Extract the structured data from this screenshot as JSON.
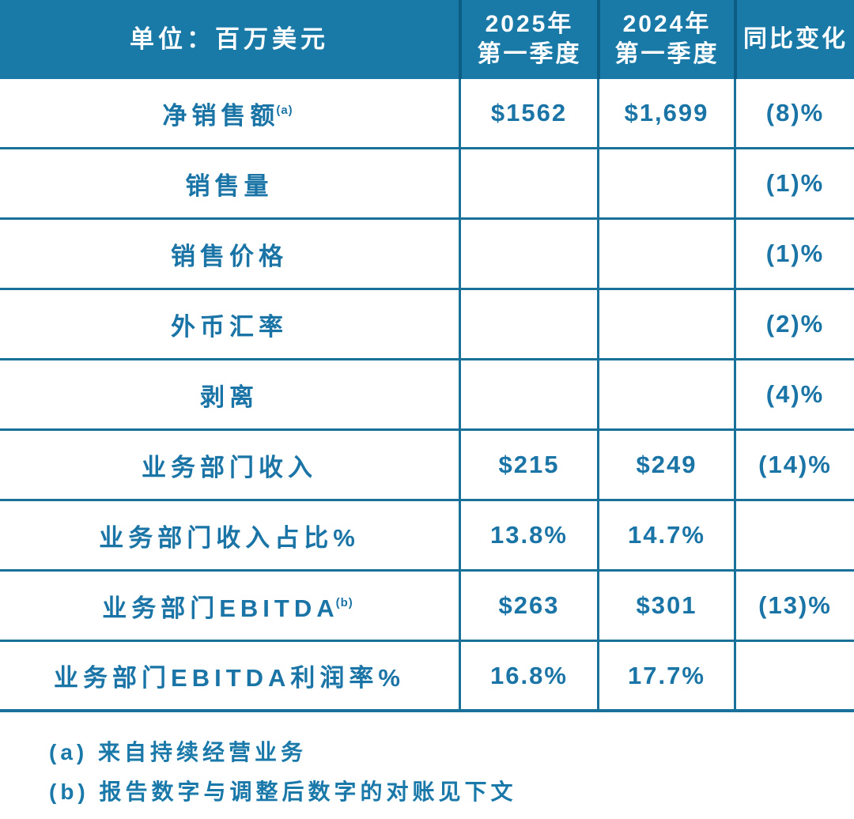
{
  "table": {
    "header": {
      "unit_label": "单位：百万美元",
      "col_2025": {
        "line1": "2025年",
        "line2": "第一季度"
      },
      "col_2024": {
        "line1": "2024年",
        "line2": "第一季度"
      },
      "col_change": "同比变化"
    },
    "rows": [
      {
        "label": "净销售额",
        "sup": "(a)",
        "q1_2025": "$1562",
        "q1_2024": "$1,699",
        "change": "(8)%"
      },
      {
        "label": "销售量",
        "sup": "",
        "q1_2025": "",
        "q1_2024": "",
        "change": "(1)%"
      },
      {
        "label": "销售价格",
        "sup": "",
        "q1_2025": "",
        "q1_2024": "",
        "change": "(1)%"
      },
      {
        "label": "外币汇率",
        "sup": "",
        "q1_2025": "",
        "q1_2024": "",
        "change": "(2)%"
      },
      {
        "label": "剥离",
        "sup": "",
        "q1_2025": "",
        "q1_2024": "",
        "change": "(4)%"
      },
      {
        "label": "业务部门收入",
        "sup": "",
        "q1_2025": "$215",
        "q1_2024": "$249",
        "change": "(14)%"
      },
      {
        "label": "业务部门收入占比%",
        "sup": "",
        "q1_2025": "13.8%",
        "q1_2024": "14.7%",
        "change": ""
      },
      {
        "label": "业务部门EBITDA",
        "sup": "(b)",
        "q1_2025": "$263",
        "q1_2024": "$301",
        "change": "(13)%"
      },
      {
        "label": "业务部门EBITDA利润率%",
        "sup": "",
        "q1_2025": "16.8%",
        "q1_2024": "17.7%",
        "change": ""
      }
    ],
    "footnotes": [
      "(a) 来自持续经营业务",
      "(b) 报告数字与调整后数字的对账见下文"
    ]
  },
  "colors": {
    "header_background": "#1A7AA7",
    "header_divider": "#0C5C84",
    "grid_line": "#19719A",
    "text_blue": "#1A74A6",
    "header_text": "#FFFFFF",
    "page_background": "#FFFFFF"
  }
}
